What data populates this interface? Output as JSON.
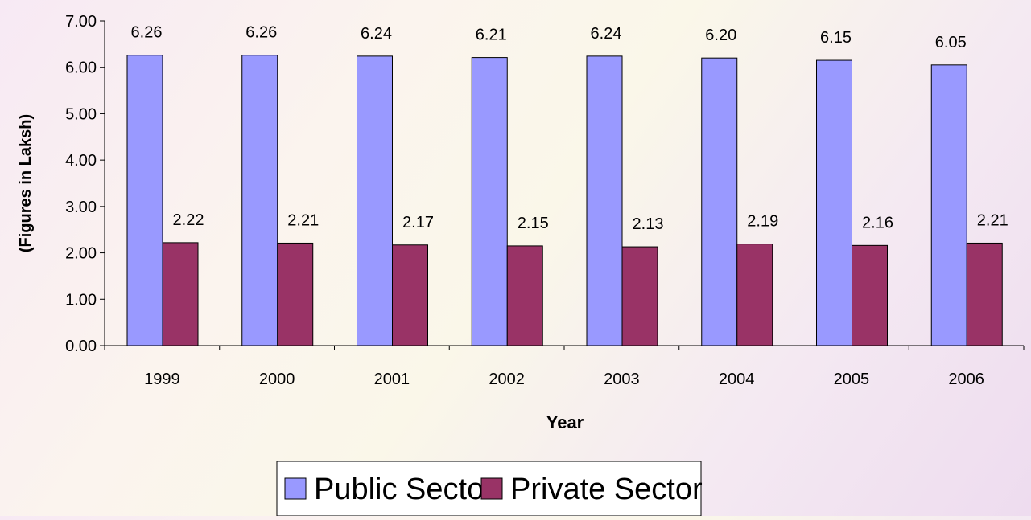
{
  "chart_data": {
    "type": "bar",
    "categories": [
      "1999",
      "2000",
      "2001",
      "2002",
      "2003",
      "2004",
      "2005",
      "2006"
    ],
    "series": [
      {
        "name": "Public Sector",
        "values": [
          6.26,
          6.26,
          6.24,
          6.21,
          6.24,
          6.2,
          6.15,
          6.05
        ],
        "labels": [
          "6.26",
          "6.26",
          "6.24",
          "6.21",
          "6.24",
          "6.20",
          "6.15",
          "6.05"
        ],
        "color": "#9999ff"
      },
      {
        "name": "Private Sector",
        "values": [
          2.22,
          2.21,
          2.17,
          2.15,
          2.13,
          2.19,
          2.16,
          2.21
        ],
        "labels": [
          "2.22",
          "2.21",
          "2.17",
          "2.15",
          "2.13",
          "2.19",
          "2.16",
          "2.21"
        ],
        "color": "#993366"
      }
    ],
    "xlabel": "Year",
    "ylabel": "(Figures in Laksh)",
    "ylim": [
      0,
      7
    ],
    "yticks": [
      "0.00",
      "1.00",
      "2.00",
      "3.00",
      "4.00",
      "5.00",
      "6.00",
      "7.00"
    ],
    "grid": false,
    "legend": "bottom"
  }
}
